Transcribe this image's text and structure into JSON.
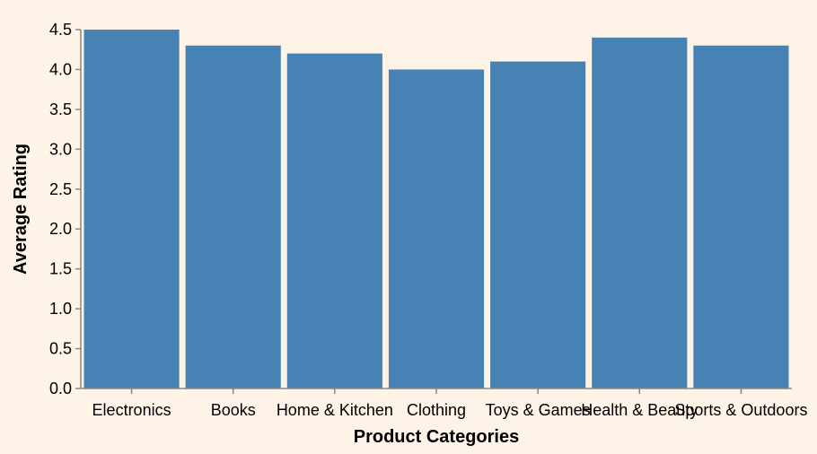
{
  "chart_data": {
    "type": "bar",
    "categories": [
      "Electronics",
      "Books",
      "Home & Kitchen",
      "Clothing",
      "Toys & Games",
      "Health & Beauty",
      "Sports & Outdoors"
    ],
    "values": [
      4.5,
      4.3,
      4.2,
      4.0,
      4.1,
      4.4,
      4.3
    ],
    "title": "",
    "xlabel": "Product Categories",
    "ylabel": "Average Rating",
    "ylim": [
      0,
      4.5
    ],
    "yticks": [
      "0.0",
      "0.5",
      "1.0",
      "1.5",
      "2.0",
      "2.5",
      "3.0",
      "3.5",
      "4.0",
      "4.5"
    ],
    "grid": false,
    "legend": "none",
    "colors": {
      "bar": "#4682b4",
      "axis": "#888888",
      "background": "#fdf3e6"
    }
  }
}
